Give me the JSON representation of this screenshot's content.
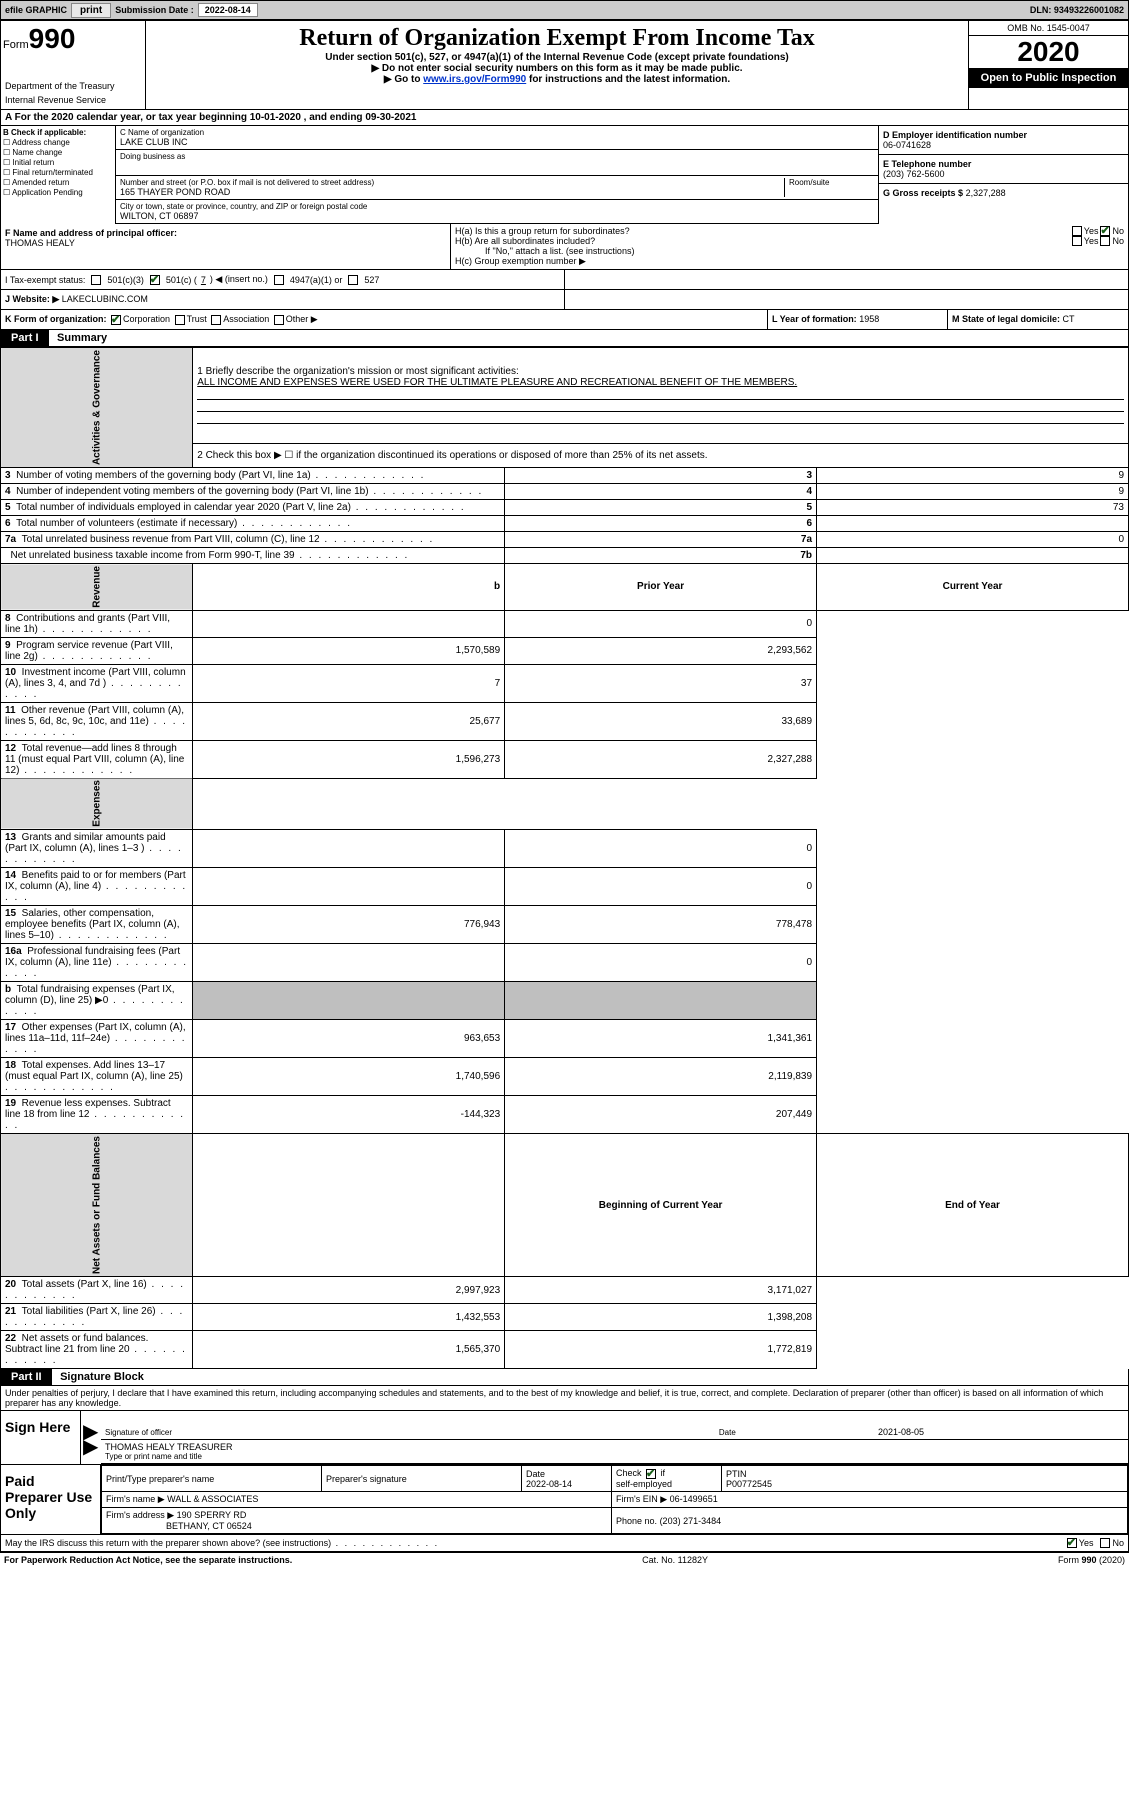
{
  "topbar": {
    "efile_label": "efile GRAPHIC",
    "print_btn": "print",
    "submission_label": "Submission Date :",
    "submission_date": "2022-08-14",
    "dln_label": "DLN:",
    "dln": "93493226001082"
  },
  "header": {
    "form_word": "Form",
    "form_num": "990",
    "dept": "Department of the Treasury",
    "irs": "Internal Revenue Service",
    "title": "Return of Organization Exempt From Income Tax",
    "sub1": "Under section 501(c), 527, or 4947(a)(1) of the Internal Revenue Code (except private foundations)",
    "sub2": "▶ Do not enter social security numbers on this form as it may be made public.",
    "sub3_pre": "▶ Go to ",
    "sub3_link": "www.irs.gov/Form990",
    "sub3_post": " for instructions and the latest information.",
    "omb": "OMB No. 1545-0047",
    "year": "2020",
    "open_pub": "Open to Public Inspection"
  },
  "row_a": "A    For the 2020 calendar year, or tax year beginning 10-01-2020     , and ending 09-30-2021",
  "col_b": {
    "label": "B Check if applicable:",
    "addr": "Address change",
    "name": "Name change",
    "init": "Initial return",
    "final": "Final return/terminated",
    "amend": "Amended return",
    "app": "Application Pending"
  },
  "col_c": {
    "name_label": "C Name of organization",
    "name": "LAKE CLUB INC",
    "dba_label": "Doing business as",
    "dba": "",
    "street_label": "Number and street (or P.O. box if mail is not delivered to street address)",
    "room_label": "Room/suite",
    "street": "165 THAYER POND ROAD",
    "city_label": "City or town, state or province, country, and ZIP or foreign postal code",
    "city": "WILTON, CT  06897"
  },
  "col_de": {
    "d_label": "D Employer identification number",
    "d_val": "06-0741628",
    "e_label": "E Telephone number",
    "e_val": "(203) 762-5600",
    "g_label": "G Gross receipts $",
    "g_val": "2,327,288"
  },
  "row_f": {
    "f_label": "F Name and address of principal officer:",
    "f_val": "THOMAS HEALY",
    "ha": "H(a)  Is this a group return for subordinates?",
    "hb": "H(b)  Are all subordinates included?",
    "hb_note": "If \"No,\" attach a list. (see instructions)",
    "hc": "H(c)  Group exemption number ▶",
    "yes": "Yes",
    "no": "No"
  },
  "row_i": {
    "label": "I  Tax-exempt status:",
    "c3": "501(c)(3)",
    "c_pre": "501(c) (",
    "c_num": "7",
    "c_post": ") ◀ (insert no.)",
    "a1": "4947(a)(1) or",
    "s527": "527"
  },
  "row_j": {
    "label": "J  Website: ▶",
    "val": "LAKECLUBINC.COM"
  },
  "row_k": {
    "label": "K Form of organization:",
    "corp": "Corporation",
    "trust": "Trust",
    "assoc": "Association",
    "other": "Other ▶",
    "l_label": "L Year of formation:",
    "l_val": "1958",
    "m_label": "M State of legal domicile:",
    "m_val": "CT"
  },
  "part1": {
    "hdr": "Part I",
    "title": "Summary",
    "q1": "1  Briefly describe the organization's mission or most significant activities:",
    "q1_ans": "ALL INCOME AND EXPENSES WERE USED FOR THE ULTIMATE PLEASURE AND RECREATIONAL BENEFIT OF THE MEMBERS.",
    "q2": "2    Check this box ▶ ☐  if the organization discontinued its operations or disposed of more than 25% of its net assets.",
    "side_gov": "Activities & Governance",
    "side_rev": "Revenue",
    "side_exp": "Expenses",
    "side_net": "Net Assets or Fund Balances",
    "rows_gov": [
      {
        "n": "3",
        "d": "Number of voting members of the governing body (Part VI, line 1a)",
        "box": "3",
        "v": "9"
      },
      {
        "n": "4",
        "d": "Number of independent voting members of the governing body (Part VI, line 1b)",
        "box": "4",
        "v": "9"
      },
      {
        "n": "5",
        "d": "Total number of individuals employed in calendar year 2020 (Part V, line 2a)",
        "box": "5",
        "v": "73"
      },
      {
        "n": "6",
        "d": "Total number of volunteers (estimate if necessary)",
        "box": "6",
        "v": ""
      },
      {
        "n": "7a",
        "d": "Total unrelated business revenue from Part VIII, column (C), line 12",
        "box": "7a",
        "v": "0"
      },
      {
        "n": "",
        "d": "Net unrelated business taxable income from Form 990-T, line 39",
        "box": "7b",
        "v": ""
      }
    ],
    "col_prior": "Prior Year",
    "col_curr": "Current Year",
    "rows_rev": [
      {
        "n": "8",
        "d": "Contributions and grants (Part VIII, line 1h)",
        "p": "",
        "c": "0"
      },
      {
        "n": "9",
        "d": "Program service revenue (Part VIII, line 2g)",
        "p": "1,570,589",
        "c": "2,293,562"
      },
      {
        "n": "10",
        "d": "Investment income (Part VIII, column (A), lines 3, 4, and 7d )",
        "p": "7",
        "c": "37"
      },
      {
        "n": "11",
        "d": "Other revenue (Part VIII, column (A), lines 5, 6d, 8c, 9c, 10c, and 11e)",
        "p": "25,677",
        "c": "33,689"
      },
      {
        "n": "12",
        "d": "Total revenue—add lines 8 through 11 (must equal Part VIII, column (A), line 12)",
        "p": "1,596,273",
        "c": "2,327,288"
      }
    ],
    "rows_exp": [
      {
        "n": "13",
        "d": "Grants and similar amounts paid (Part IX, column (A), lines 1–3 )",
        "p": "",
        "c": "0"
      },
      {
        "n": "14",
        "d": "Benefits paid to or for members (Part IX, column (A), line 4)",
        "p": "",
        "c": "0"
      },
      {
        "n": "15",
        "d": "Salaries, other compensation, employee benefits (Part IX, column (A), lines 5–10)",
        "p": "776,943",
        "c": "778,478"
      },
      {
        "n": "16a",
        "d": "Professional fundraising fees (Part IX, column (A), line 11e)",
        "p": "",
        "c": "0"
      },
      {
        "n": "b",
        "d": "Total fundraising expenses (Part IX, column (D), line 25) ▶0",
        "p": "SHADE",
        "c": "SHADE"
      },
      {
        "n": "17",
        "d": "Other expenses (Part IX, column (A), lines 11a–11d, 11f–24e)",
        "p": "963,653",
        "c": "1,341,361"
      },
      {
        "n": "18",
        "d": "Total expenses. Add lines 13–17 (must equal Part IX, column (A), line 25)",
        "p": "1,740,596",
        "c": "2,119,839"
      },
      {
        "n": "19",
        "d": "Revenue less expenses. Subtract line 18 from line 12",
        "p": "-144,323",
        "c": "207,449"
      }
    ],
    "col_begin": "Beginning of Current Year",
    "col_end": "End of Year",
    "rows_net": [
      {
        "n": "20",
        "d": "Total assets (Part X, line 16)",
        "p": "2,997,923",
        "c": "3,171,027"
      },
      {
        "n": "21",
        "d": "Total liabilities (Part X, line 26)",
        "p": "1,432,553",
        "c": "1,398,208"
      },
      {
        "n": "22",
        "d": "Net assets or fund balances. Subtract line 21 from line 20",
        "p": "1,565,370",
        "c": "1,772,819"
      }
    ]
  },
  "part2": {
    "hdr": "Part II",
    "title": "Signature Block",
    "decl": "Under penalties of perjury, I declare that I have examined this return, including accompanying schedules and statements, and to the best of my knowledge and belief, it is true, correct, and complete. Declaration of preparer (other than officer) is based on all information of which preparer has any knowledge.",
    "sign_here": "Sign Here",
    "sig_off": "Signature of officer",
    "sig_date_label": "Date",
    "sig_date": "2021-08-05",
    "sig_name": "THOMAS HEALY  TREASURER",
    "sig_name_label": "Type or print name and title",
    "paid": "Paid Preparer Use Only",
    "prep_name_label": "Print/Type preparer's name",
    "prep_sig_label": "Preparer's signature",
    "prep_date_label": "Date",
    "prep_date": "2022-08-14",
    "self_emp": "Check ☑ if self-employed",
    "ptin_label": "PTIN",
    "ptin": "P00772545",
    "firm_name_label": "Firm's name     ▶",
    "firm_name": "WALL & ASSOCIATES",
    "firm_ein_label": "Firm's EIN ▶",
    "firm_ein": "06-1499651",
    "firm_addr_label": "Firm's address ▶",
    "firm_addr1": "190 SPERRY RD",
    "firm_addr2": "BETHANY, CT  06524",
    "phone_label": "Phone no.",
    "phone": "(203) 271-3484",
    "discuss": "May the IRS discuss this return with the preparer shown above? (see instructions)"
  },
  "footer": {
    "left": "For Paperwork Reduction Act Notice, see the separate instructions.",
    "mid": "Cat. No. 11282Y",
    "right": "Form 990 (2020)"
  }
}
